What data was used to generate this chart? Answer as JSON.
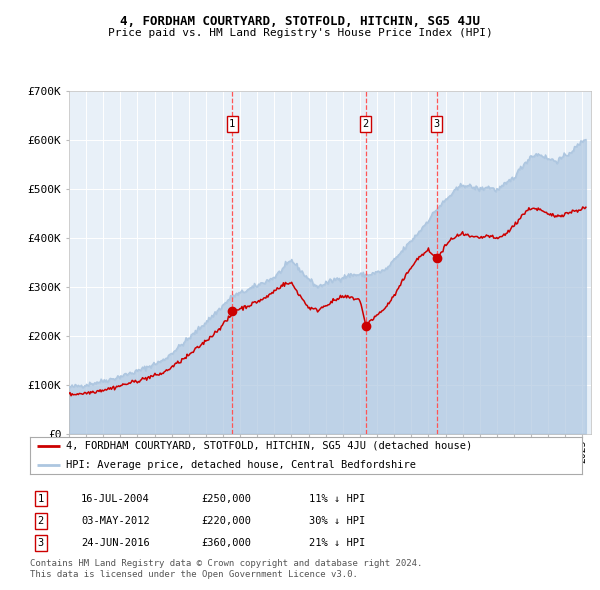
{
  "title": "4, FORDHAM COURTYARD, STOTFOLD, HITCHIN, SG5 4JU",
  "subtitle": "Price paid vs. HM Land Registry's House Price Index (HPI)",
  "legend_line1": "4, FORDHAM COURTYARD, STOTFOLD, HITCHIN, SG5 4JU (detached house)",
  "legend_line2": "HPI: Average price, detached house, Central Bedfordshire",
  "sales": [
    {
      "date": 2004.54,
      "price": 250000,
      "label": "1"
    },
    {
      "date": 2012.34,
      "price": 220000,
      "label": "2"
    },
    {
      "date": 2016.48,
      "price": 360000,
      "label": "3"
    }
  ],
  "sale_annotations": [
    {
      "label": "1",
      "date": "16-JUL-2004",
      "price": "£250,000",
      "pct": "11% ↓ HPI"
    },
    {
      "label": "2",
      "date": "03-MAY-2012",
      "price": "£220,000",
      "pct": "30% ↓ HPI"
    },
    {
      "label": "3",
      "date": "24-JUN-2016",
      "price": "£360,000",
      "pct": "21% ↓ HPI"
    }
  ],
  "hpi_color": "#adc6e0",
  "price_color": "#cc0000",
  "plot_bg": "#e8f0f8",
  "vline_color": "#ff5555",
  "xmin": 1995,
  "xmax": 2025.5,
  "ymin": 0,
  "ymax": 700000,
  "yticks": [
    0,
    100000,
    200000,
    300000,
    400000,
    500000,
    600000,
    700000
  ],
  "footer": "Contains HM Land Registry data © Crown copyright and database right 2024.\nThis data is licensed under the Open Government Licence v3.0."
}
